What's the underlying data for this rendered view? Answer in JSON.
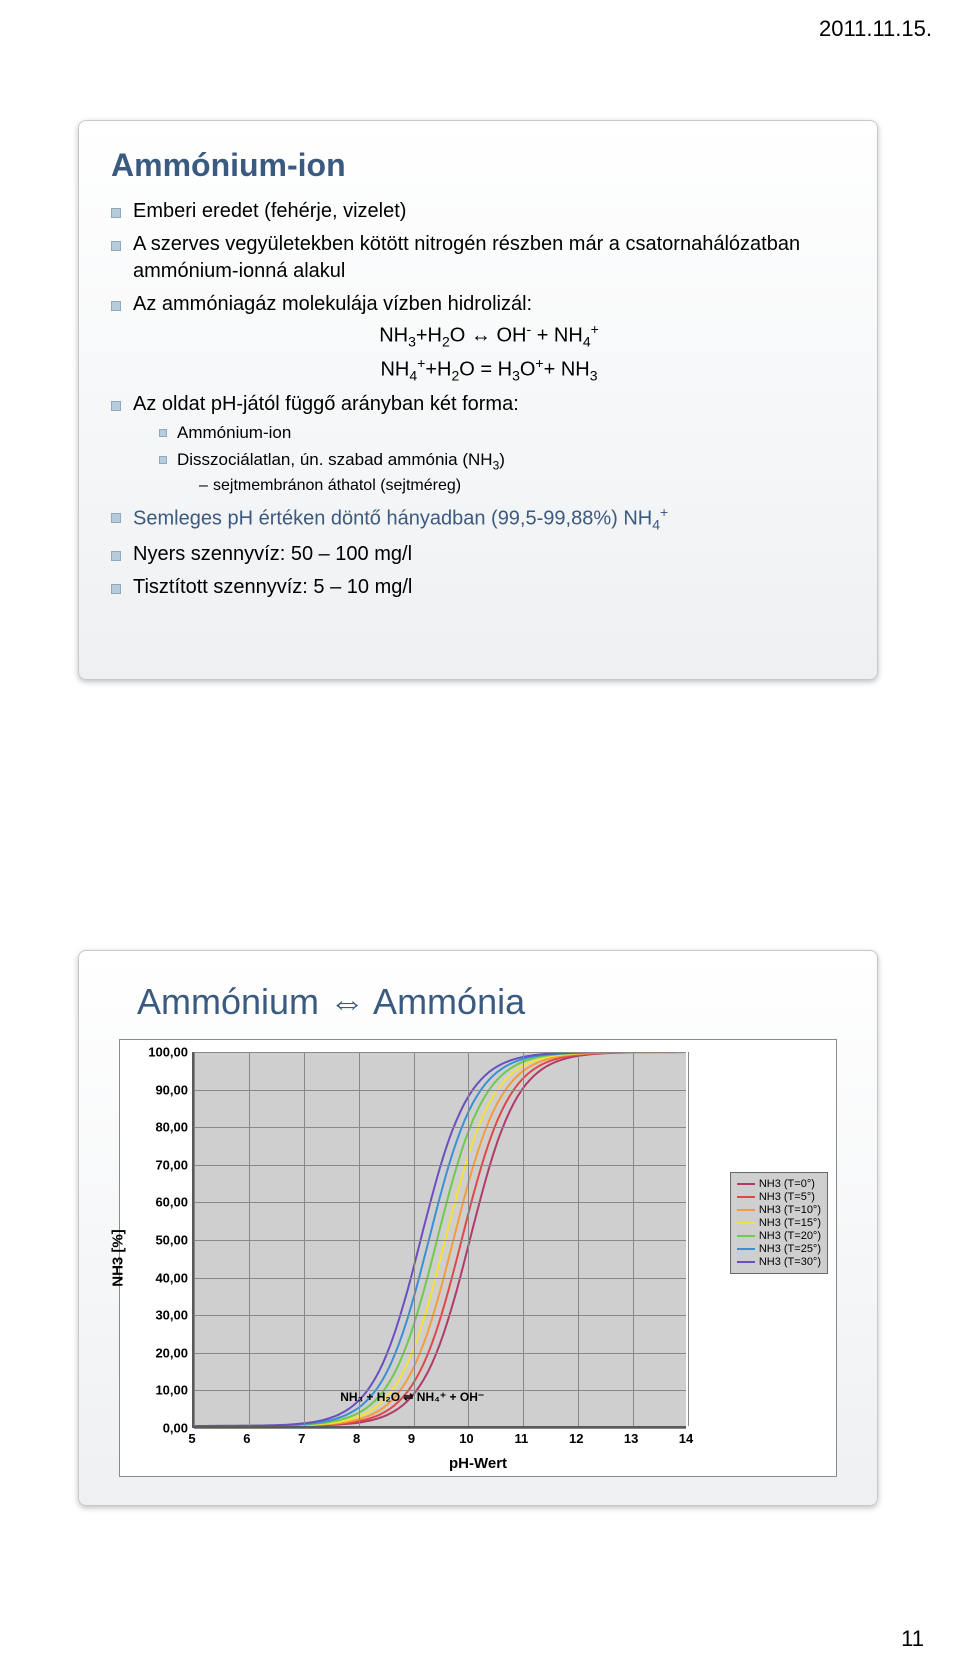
{
  "header": {
    "date": "2011.11.15."
  },
  "footer": {
    "page": "11"
  },
  "slide1": {
    "title": "Ammónium-ion",
    "bullets": [
      "Emberi eredet (fehérje, vizelet)",
      "A szerves vegyületekben kötött nitrogén részben már a csatornahálózatban ammónium-ionná alakul",
      "Az ammóniagáz molekulája vízben hidrolizál:"
    ],
    "equations": {
      "eq1_lhs": "NH",
      "eq1_sub1": "3",
      "eq1_mid1": "+H",
      "eq1_sub2": "2",
      "eq1_mid2": "O ↔ OH",
      "eq1_sup1": "-",
      "eq1_mid3": " + NH",
      "eq1_sub3": "4",
      "eq1_sup2": "+",
      "eq2_a": "NH",
      "eq2_s1": "4",
      "eq2_p1": "+",
      "eq2_b": "+H",
      "eq2_s2": "2",
      "eq2_c": "O = H",
      "eq2_s3": "3",
      "eq2_d": "O",
      "eq2_p2": "+",
      "eq2_e": "+ NH",
      "eq2_s4": "3"
    },
    "bullet_solution": "Az oldat pH-jától függő arányban két forma:",
    "sub_items": [
      "Ammónium-ion",
      "Disszociálatlan, ún. szabad ammónia (NH"
    ],
    "sub_item2_sub": "3",
    "sub_item2_tail": ")",
    "subsub": "sejtmembránon áthatol (sejtméreg)",
    "colored_bullet_a": "Semleges pH értéken döntő hányadban (99,5-99,88%) NH",
    "colored_bullet_sub": "4",
    "colored_bullet_sup": "+",
    "last_bullets": [
      "Nyers szennyvíz: 50 – 100 mg/l",
      "Tisztított szennyvíz: 5 – 10 mg/l"
    ]
  },
  "slide2": {
    "title": "Ammónium ⇔ Ammónia",
    "chart": {
      "type": "line",
      "xlabel": "pH-Wert",
      "ylabel": "NH3 [%]",
      "xlim": [
        5,
        14
      ],
      "ylim": [
        0,
        100
      ],
      "ytick_step": 10,
      "xtick_step": 1,
      "background_color": "#cfcfcf",
      "grid_color": "#888888",
      "axis_color": "#5a5a5a",
      "colors": {
        "t0": "#b23a6a",
        "t5": "#e04848",
        "t10": "#f59c3a",
        "t15": "#f2e23a",
        "t20": "#6fc94a",
        "t25": "#3a8fd6",
        "t30": "#6a4fbf"
      },
      "legend": [
        {
          "label": "NH3 (T=0°)",
          "color": "#b23a6a"
        },
        {
          "label": "NH3 (T=5°)",
          "color": "#e04848"
        },
        {
          "label": "NH3 (T=10°)",
          "color": "#f59c3a"
        },
        {
          "label": "NH3 (T=15°)",
          "color": "#f2e23a"
        },
        {
          "label": "NH3 (T=20°)",
          "color": "#6fc94a"
        },
        {
          "label": "NH3 (T=25°)",
          "color": "#3a8fd6"
        },
        {
          "label": "NH3 (T=30°)",
          "color": "#6a4fbf"
        }
      ],
      "xshifts": [
        0.0,
        0.15,
        0.3,
        0.45,
        0.6,
        0.75,
        0.9
      ],
      "reaction_label": "NH₃ + H₂O ⇌ NH₄⁺ + OH⁻",
      "yticks": [
        "0,00",
        "10,00",
        "20,00",
        "30,00",
        "40,00",
        "50,00",
        "60,00",
        "70,00",
        "80,00",
        "90,00",
        "100,00"
      ],
      "xticks": [
        "5",
        "6",
        "7",
        "8",
        "9",
        "10",
        "11",
        "12",
        "13",
        "14"
      ]
    }
  }
}
